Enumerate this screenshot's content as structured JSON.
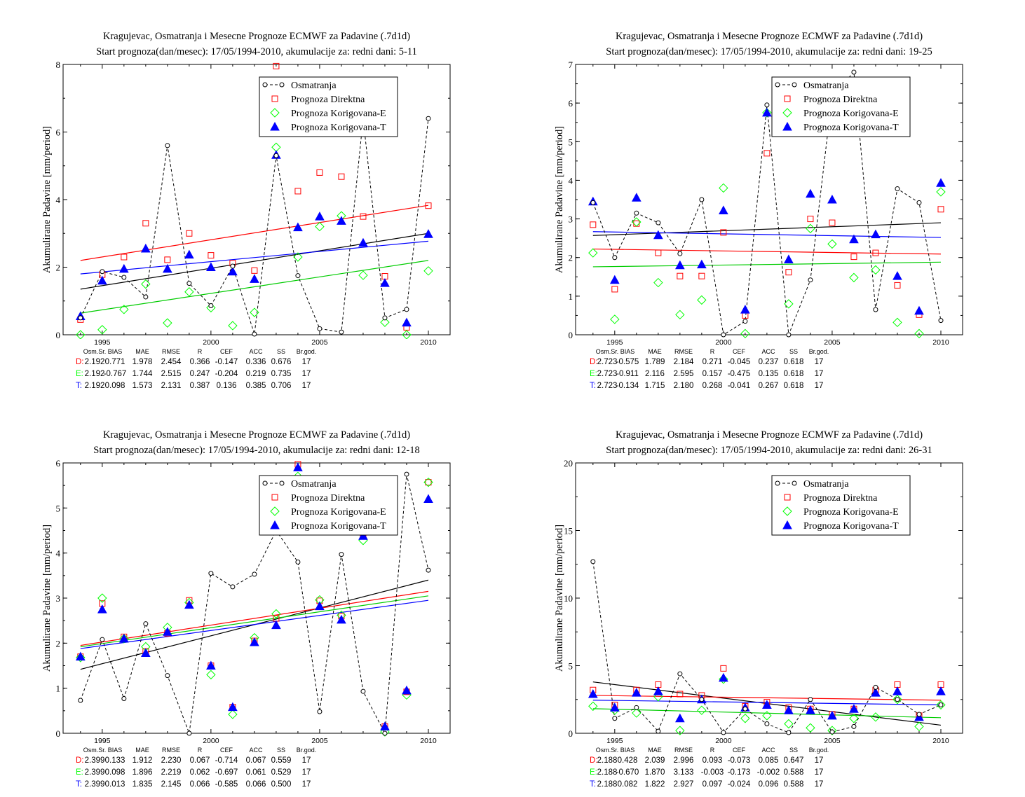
{
  "colors": {
    "observed": "#000000",
    "direct": "#ff0000",
    "corrected_e": "#00ff00",
    "corrected_t": "#0000ff",
    "trend_observed": "#000000",
    "trend_direct": "#ff0000",
    "trend_e": "#00cc00",
    "trend_t": "#0000ff"
  },
  "stats_header": [
    "Osm.Sr.",
    "BIAS",
    "MAE",
    "RMSE",
    "R",
    "CEF",
    "ACC",
    "SS",
    "Br.god."
  ],
  "chart_data": [
    {
      "type": "scatter",
      "title": "Kragujevac, Osmatranja i Mesecne Prognoze ECMWF za Padavine (.7d1d)",
      "subtitle": "Start prognoza(dan/mesec): 17/05/1994-2010, akumulacije za: redni dani: 5-11",
      "xlabel": "",
      "ylabel": "Akumulirane Padavine [mm/period]",
      "xlim": [
        1993.2,
        2011
      ],
      "ylim": [
        0,
        8
      ],
      "yticks": [
        0,
        2,
        4,
        6,
        8
      ],
      "xticks": [
        1995,
        2000,
        2005,
        2010
      ],
      "legend_position": "top-right",
      "x": [
        1994,
        1995,
        1996,
        1997,
        1998,
        1999,
        2000,
        2001,
        2002,
        2003,
        2004,
        2005,
        2006,
        2007,
        2008,
        2009,
        2010
      ],
      "series": [
        {
          "name": "Osmatranja",
          "marker": "circle-dashed-line",
          "values": [
            0.5,
            1.87,
            1.7,
            1.12,
            5.6,
            1.52,
            0.86,
            2.03,
            0.02,
            5.3,
            1.75,
            0.18,
            0.08,
            6.4,
            0.5,
            0.75,
            6.4
          ]
        },
        {
          "name": "Prognoza Direktna",
          "marker": "square",
          "values": [
            0.45,
            1.78,
            2.3,
            3.3,
            2.22,
            3.0,
            2.35,
            2.12,
            1.9,
            7.95,
            4.25,
            4.8,
            4.68,
            3.5,
            1.73,
            0.22,
            3.82
          ]
        },
        {
          "name": "Prognoza Korigovana-E",
          "marker": "diamond",
          "values": [
            0.0,
            0.15,
            0.75,
            1.5,
            0.35,
            1.27,
            0.8,
            0.27,
            0.66,
            5.55,
            2.3,
            3.2,
            3.52,
            1.76,
            0.37,
            0.0,
            1.89
          ]
        },
        {
          "name": "Prognoza Korigovana-T",
          "marker": "triangle",
          "values": [
            0.55,
            1.6,
            1.95,
            2.55,
            1.95,
            2.37,
            2.0,
            1.87,
            1.65,
            5.32,
            3.18,
            3.5,
            3.37,
            2.72,
            1.53,
            0.36,
            2.98
          ]
        }
      ],
      "trendlines": [
        {
          "series": "Osmatranja",
          "start": [
            1994,
            1.35
          ],
          "end": [
            2010,
            3.0
          ]
        },
        {
          "series": "Prognoza Direktna",
          "start": [
            1994,
            2.2
          ],
          "end": [
            2010,
            3.83
          ]
        },
        {
          "series": "Prognoza Korigovana-E",
          "start": [
            1994,
            0.64
          ],
          "end": [
            2010,
            2.2
          ]
        },
        {
          "series": "Prognoza Korigovana-T",
          "start": [
            1994,
            1.8
          ],
          "end": [
            2010,
            2.77
          ]
        }
      ],
      "stats": [
        {
          "label": "D:",
          "values": [
            "2.192",
            "0.771",
            "1.978",
            "2.454",
            "0.366",
            "-0.147",
            "0.336",
            "0.676",
            "17"
          ]
        },
        {
          "label": "E:",
          "values": [
            "2.192",
            "-0.767",
            "1.744",
            "2.515",
            "0.247",
            "-0.204",
            "0.219",
            "0.735",
            "17"
          ]
        },
        {
          "label": "T:",
          "values": [
            "2.192",
            "0.098",
            "1.573",
            "2.131",
            "0.387",
            "0.136",
            "0.385",
            "0.706",
            "17"
          ]
        }
      ]
    },
    {
      "type": "scatter",
      "title": "Kragujevac, Osmatranja i Mesecne Prognoze ECMWF za Padavine (.7d1d)",
      "subtitle": "Start prognoza(dan/mesec): 17/05/1994-2010, akumulacije za: redni dani: 19-25",
      "xlabel": "",
      "ylabel": "Akumulirane Padavine [mm/period]",
      "xlim": [
        1993.2,
        2011
      ],
      "ylim": [
        0,
        7
      ],
      "yticks": [
        0,
        1,
        2,
        3,
        4,
        5,
        6,
        7
      ],
      "xticks": [
        1995,
        2000,
        2005,
        2010
      ],
      "legend_position": "top-right",
      "x": [
        1994,
        1995,
        1996,
        1997,
        1998,
        1999,
        2000,
        2001,
        2002,
        2003,
        2004,
        2005,
        2006,
        2007,
        2008,
        2009,
        2010
      ],
      "series": [
        {
          "name": "Osmatranja",
          "marker": "circle-dashed-line",
          "values": [
            3.42,
            2.0,
            3.15,
            2.9,
            2.1,
            3.5,
            0.0,
            0.35,
            5.95,
            0.0,
            1.42,
            6.2,
            6.8,
            0.65,
            3.78,
            3.42,
            0.37
          ]
        },
        {
          "name": "Prognoza Direktna",
          "marker": "square",
          "values": [
            2.85,
            1.18,
            2.88,
            2.12,
            1.52,
            1.52,
            2.65,
            0.5,
            4.7,
            1.62,
            3.0,
            2.9,
            2.02,
            2.12,
            1.28,
            0.52,
            3.25
          ]
        },
        {
          "name": "Prognoza Korigovana-E",
          "marker": "diamond",
          "values": [
            2.12,
            0.4,
            2.92,
            1.35,
            0.52,
            0.9,
            3.8,
            0.03,
            5.75,
            0.8,
            2.75,
            2.35,
            1.48,
            1.68,
            0.32,
            0.03,
            3.7
          ]
        },
        {
          "name": "Prognoza Korigovana-T",
          "marker": "triangle",
          "values": [
            3.45,
            1.42,
            3.55,
            2.58,
            1.8,
            1.82,
            3.22,
            0.65,
            5.75,
            1.95,
            3.65,
            3.5,
            2.47,
            2.6,
            1.52,
            0.62,
            3.93
          ]
        }
      ],
      "trendlines": [
        {
          "series": "Osmatranja",
          "start": [
            1994,
            2.57
          ],
          "end": [
            2010,
            2.9
          ]
        },
        {
          "series": "Prognoza Direktna",
          "start": [
            1994,
            2.22
          ],
          "end": [
            2010,
            2.09
          ]
        },
        {
          "series": "Prognoza Korigovana-E",
          "start": [
            1994,
            1.76
          ],
          "end": [
            2010,
            1.88
          ]
        },
        {
          "series": "Prognoza Korigovana-T",
          "start": [
            1994,
            2.67
          ],
          "end": [
            2010,
            2.52
          ]
        }
      ],
      "stats": [
        {
          "label": "D:",
          "values": [
            "2.723",
            "-0.575",
            "1.789",
            "2.184",
            "0.271",
            "-0.045",
            "0.237",
            "0.618",
            "17"
          ]
        },
        {
          "label": "E:",
          "values": [
            "2.723",
            "-0.911",
            "2.116",
            "2.595",
            "0.157",
            "-0.475",
            "0.135",
            "0.618",
            "17"
          ]
        },
        {
          "label": "T:",
          "values": [
            "2.723",
            "-0.134",
            "1.715",
            "2.180",
            "0.268",
            "-0.041",
            "0.267",
            "0.618",
            "17"
          ]
        }
      ]
    },
    {
      "type": "scatter",
      "title": "Kragujevac, Osmatranja i Mesecne Prognoze ECMWF za Padavine (.7d1d)",
      "subtitle": "Start prognoza(dan/mesec): 17/05/1994-2010, akumulacije za: redni dani: 12-18",
      "xlabel": "",
      "ylabel": "Akumulirane Padavine [mm/period]",
      "xlim": [
        1993.2,
        2011
      ],
      "ylim": [
        0,
        6
      ],
      "yticks": [
        0,
        1,
        2,
        3,
        4,
        5,
        6
      ],
      "xticks": [
        1995,
        2000,
        2005,
        2010
      ],
      "legend_position": "top-right",
      "x": [
        1994,
        1995,
        1996,
        1997,
        1998,
        1999,
        2000,
        2001,
        2002,
        2003,
        2004,
        2005,
        2006,
        2007,
        2008,
        2009,
        2010
      ],
      "series": [
        {
          "name": "Osmatranja",
          "marker": "circle-dashed-line",
          "values": [
            0.73,
            2.08,
            0.77,
            2.43,
            1.28,
            0.0,
            3.55,
            3.25,
            3.53,
            4.5,
            3.8,
            0.48,
            3.97,
            0.93,
            0.0,
            5.75,
            3.62
          ]
        },
        {
          "name": "Prognoza Direktna",
          "marker": "square",
          "values": [
            1.7,
            2.88,
            2.14,
            1.82,
            2.22,
            2.95,
            1.5,
            0.58,
            2.05,
            2.55,
            5.97,
            2.94,
            2.6,
            4.4,
            0.15,
            0.92,
            5.57
          ]
        },
        {
          "name": "Prognoza Korigovana-E",
          "marker": "diamond",
          "values": [
            1.68,
            3.0,
            2.1,
            1.92,
            2.35,
            2.9,
            1.3,
            0.42,
            2.12,
            2.65,
            5.7,
            2.96,
            2.62,
            4.28,
            0.03,
            0.85,
            5.57
          ]
        },
        {
          "name": "Prognoza Korigovana-T",
          "marker": "triangle",
          "values": [
            1.7,
            2.75,
            2.1,
            1.78,
            2.25,
            2.85,
            1.5,
            0.58,
            2.02,
            2.4,
            5.9,
            2.82,
            2.52,
            4.38,
            0.15,
            0.95,
            5.2
          ]
        }
      ],
      "trendlines": [
        {
          "series": "Osmatranja",
          "start": [
            1994,
            1.42
          ],
          "end": [
            2010,
            3.4
          ]
        },
        {
          "series": "Prognoza Direktna",
          "start": [
            1994,
            1.95
          ],
          "end": [
            2010,
            3.15
          ]
        },
        {
          "series": "Prognoza Korigovana-E",
          "start": [
            1994,
            1.92
          ],
          "end": [
            2010,
            3.05
          ]
        },
        {
          "series": "Prognoza Korigovana-T",
          "start": [
            1994,
            1.88
          ],
          "end": [
            2010,
            2.95
          ]
        }
      ],
      "stats": [
        {
          "label": "D:",
          "values": [
            "2.399",
            "0.133",
            "1.912",
            "2.230",
            "0.067",
            "-0.714",
            "0.067",
            "0.559",
            "17"
          ]
        },
        {
          "label": "E:",
          "values": [
            "2.399",
            "0.098",
            "1.896",
            "2.219",
            "0.062",
            "-0.697",
            "0.061",
            "0.529",
            "17"
          ]
        },
        {
          "label": "T:",
          "values": [
            "2.399",
            "0.013",
            "1.835",
            "2.145",
            "0.066",
            "-0.585",
            "0.066",
            "0.500",
            "17"
          ]
        }
      ]
    },
    {
      "type": "scatter",
      "title": "Kragujevac, Osmatranja i Mesecne Prognoze ECMWF za Padavine (.7d1d)",
      "subtitle": "Start prognoza(dan/mesec): 17/05/1994-2010, akumulacije za: redni dani: 26-31",
      "xlabel": "",
      "ylabel": "Akumulirane Padavine [mm/period]",
      "xlim": [
        1993.2,
        2011
      ],
      "ylim": [
        0,
        20
      ],
      "yticks": [
        0,
        5,
        10,
        15,
        20
      ],
      "xticks": [
        1995,
        2000,
        2005,
        2010
      ],
      "legend_position": "top-right",
      "x": [
        1994,
        1995,
        1996,
        1997,
        1998,
        1999,
        2000,
        2001,
        2002,
        2003,
        2004,
        2005,
        2006,
        2007,
        2008,
        2009,
        2010
      ],
      "series": [
        {
          "name": "Osmatranja",
          "marker": "circle-dashed-line",
          "values": [
            12.7,
            1.1,
            1.9,
            0.15,
            4.4,
            2.5,
            0.05,
            1.8,
            0.7,
            0.05,
            2.5,
            0.1,
            0.5,
            3.4,
            2.5,
            1.4,
            2.1
          ]
        },
        {
          "name": "Prognoza Direktna",
          "marker": "square",
          "values": [
            3.2,
            2.1,
            3.2,
            3.6,
            2.9,
            2.8,
            4.8,
            2.0,
            2.3,
            1.9,
            1.8,
            1.4,
            1.8,
            3.2,
            3.6,
            1.3,
            3.6
          ]
        },
        {
          "name": "Prognoza Korigovana-E",
          "marker": "diamond",
          "values": [
            2.0,
            1.7,
            1.5,
            2.7,
            0.2,
            1.7,
            4.0,
            1.1,
            1.3,
            0.7,
            0.4,
            0.2,
            1.1,
            1.2,
            2.5,
            0.5,
            2.1
          ]
        },
        {
          "name": "Prognoza Korigovana-T",
          "marker": "triangle",
          "values": [
            2.9,
            1.9,
            3.0,
            3.1,
            1.1,
            2.5,
            4.1,
            1.9,
            2.1,
            1.7,
            1.7,
            1.3,
            1.8,
            3.0,
            3.1,
            1.2,
            3.1
          ]
        }
      ],
      "trendlines": [
        {
          "series": "Osmatranja",
          "start": [
            1994,
            3.8
          ],
          "end": [
            2010,
            0.6
          ]
        },
        {
          "series": "Prognoza Direktna",
          "start": [
            1994,
            2.8
          ],
          "end": [
            2010,
            2.45
          ]
        },
        {
          "series": "Prognoza Korigovana-E",
          "start": [
            1994,
            1.82
          ],
          "end": [
            2010,
            1.15
          ]
        },
        {
          "series": "Prognoza Korigovana-T",
          "start": [
            1994,
            2.45
          ],
          "end": [
            2010,
            2.1
          ]
        }
      ],
      "stats": [
        {
          "label": "D:",
          "values": [
            "2.188",
            "0.428",
            "2.039",
            "2.996",
            "0.093",
            "-0.073",
            "0.085",
            "0.647",
            "17"
          ]
        },
        {
          "label": "E:",
          "values": [
            "2.188",
            "-0.670",
            "1.870",
            "3.133",
            "-0.003",
            "-0.173",
            "-0.002",
            "0.588",
            "17"
          ]
        },
        {
          "label": "T:",
          "values": [
            "2.188",
            "0.082",
            "1.822",
            "2.927",
            "0.097",
            "-0.024",
            "0.096",
            "0.588",
            "17"
          ]
        }
      ]
    }
  ]
}
